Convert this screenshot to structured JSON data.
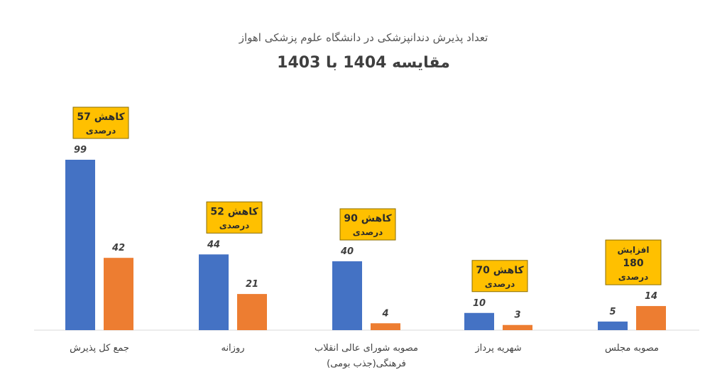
{
  "chart_data": {
    "type": "bar",
    "title": "تعداد پذیرش دندانپزشکی در دانشگاه علوم پزشکی اهواز",
    "subtitle": "مقایسه 1404 با 1403",
    "categories": [
      [
        "جمع کل پذیرش"
      ],
      [
        "روزانه"
      ],
      [
        "مصوبه شورای عالی انقلاب",
        "فرهنگی(جذب بومی)"
      ],
      [
        "شهریه پرداز"
      ],
      [
        "مصوبه مجلس"
      ]
    ],
    "series": [
      {
        "values": [
          99,
          44,
          40,
          10,
          5
        ],
        "color": "#4472C4"
      },
      {
        "values": [
          42,
          21,
          4,
          3,
          14
        ],
        "color": "#ED7D31"
      }
    ],
    "annotations": [
      {
        "line1": "کاهش 57",
        "line2": "درصدی"
      },
      {
        "line1": "کاهش 52",
        "line2": "درصدی"
      },
      {
        "line1": "کاهش 90",
        "line2": "درصدی"
      },
      {
        "line1": "کاهش 70",
        "line2": "درصدی"
      },
      {
        "line1": "افزایش",
        "line2": "180",
        "line3": "درصدی"
      }
    ],
    "annotation_color": "#FFC000",
    "ylim": [
      0,
      100
    ]
  }
}
